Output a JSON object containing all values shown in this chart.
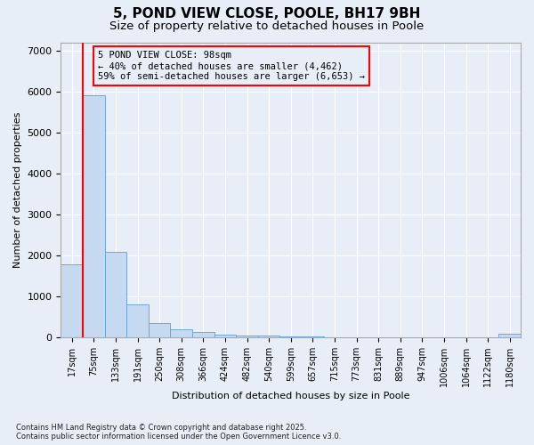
{
  "title": "5, POND VIEW CLOSE, POOLE, BH17 9BH",
  "subtitle": "Size of property relative to detached houses in Poole",
  "xlabel": "Distribution of detached houses by size in Poole",
  "ylabel": "Number of detached properties",
  "bar_color": "#c5d9f0",
  "bar_edge_color": "#6fa8d8",
  "background_color": "#e8eef8",
  "grid_color": "#ffffff",
  "vline_color": "red",
  "vline_x": 1,
  "annotation_box_color": "red",
  "annotation_text": "5 POND VIEW CLOSE: 98sqm\n← 40% of detached houses are smaller (4,462)\n59% of semi-detached houses are larger (6,653) →",
  "categories": [
    "17sqm",
    "75sqm",
    "133sqm",
    "191sqm",
    "250sqm",
    "308sqm",
    "366sqm",
    "424sqm",
    "482sqm",
    "540sqm",
    "599sqm",
    "657sqm",
    "715sqm",
    "773sqm",
    "831sqm",
    "889sqm",
    "947sqm",
    "1006sqm",
    "1064sqm",
    "1122sqm",
    "1180sqm"
  ],
  "values": [
    1780,
    5900,
    2080,
    810,
    360,
    200,
    130,
    80,
    55,
    40,
    30,
    20,
    15,
    10,
    8,
    6,
    5,
    4,
    3,
    2,
    90
  ],
  "ylim": [
    0,
    7200
  ],
  "yticks": [
    0,
    1000,
    2000,
    3000,
    4000,
    5000,
    6000,
    7000
  ],
  "footer": "Contains HM Land Registry data © Crown copyright and database right 2025.\nContains public sector information licensed under the Open Government Licence v3.0.",
  "annotation_fontsize": 7.5,
  "title_fontsize": 11,
  "subtitle_fontsize": 9.5,
  "tick_fontsize": 7,
  "axis_label_fontsize": 8
}
